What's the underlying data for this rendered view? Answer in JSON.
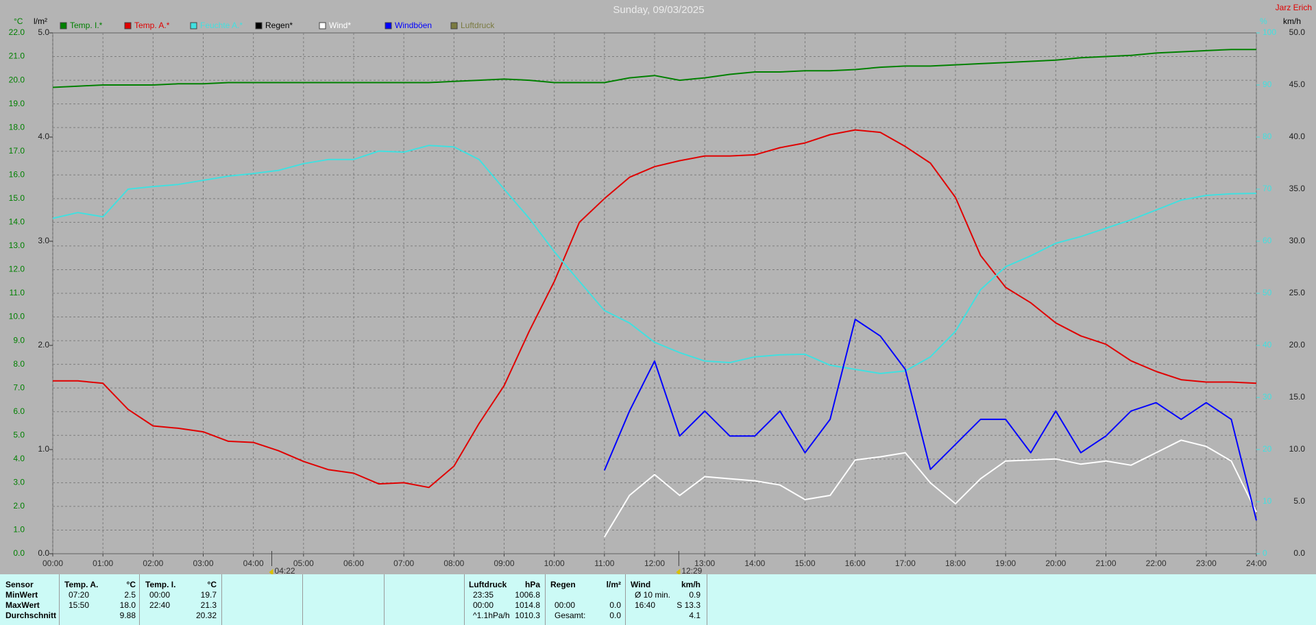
{
  "chart_data": {
    "type": "line",
    "title": "Sunday, 09/03/2025",
    "author": "Jarz Erich",
    "y_unit": "°C",
    "y4_unit": "l/m²",
    "y3_unit": "%",
    "y2_unit": "km/h",
    "grid": true,
    "x": [
      0,
      0.5,
      1,
      1.5,
      2,
      2.5,
      3,
      3.5,
      4,
      4.5,
      5,
      5.5,
      6,
      6.5,
      7,
      7.5,
      8,
      8.5,
      9,
      9.5,
      10,
      10.5,
      11,
      11.5,
      12,
      12.5,
      13,
      13.5,
      14,
      14.5,
      15,
      15.5,
      16,
      16.5,
      17,
      17.5,
      18,
      18.5,
      19,
      19.5,
      20,
      20.5,
      21,
      21.5,
      22,
      22.5,
      23,
      23.5,
      24
    ],
    "xlim": [
      0,
      24
    ],
    "xticks": [
      {
        "value": 0,
        "label": "00:00"
      },
      {
        "value": 1,
        "label": "01:00"
      },
      {
        "value": 2,
        "label": "02:00"
      },
      {
        "value": 3,
        "label": "03:00"
      },
      {
        "value": 4,
        "label": "04:00"
      },
      {
        "value": 5,
        "label": "05:00"
      },
      {
        "value": 6,
        "label": "06:00"
      },
      {
        "value": 7,
        "label": "07:00"
      },
      {
        "value": 8,
        "label": "08:00"
      },
      {
        "value": 9,
        "label": "09:00"
      },
      {
        "value": 10,
        "label": "10:00"
      },
      {
        "value": 11,
        "label": "11:00"
      },
      {
        "value": 12,
        "label": "12:00"
      },
      {
        "value": 13,
        "label": "13:00"
      },
      {
        "value": 14,
        "label": "14:00"
      },
      {
        "value": 15,
        "label": "15:00"
      },
      {
        "value": 16,
        "label": "16:00"
      },
      {
        "value": 17,
        "label": "17:00"
      },
      {
        "value": 18,
        "label": "18:00"
      },
      {
        "value": 19,
        "label": "19:00"
      },
      {
        "value": 20,
        "label": "20:00"
      },
      {
        "value": 21,
        "label": "21:00"
      },
      {
        "value": 22,
        "label": "22:00"
      },
      {
        "value": 23,
        "label": "23:00"
      },
      {
        "value": 24,
        "label": "24:00"
      }
    ],
    "markers": [
      {
        "value": 4.367,
        "label": "04:22"
      },
      {
        "value": 12.483,
        "label": "12:29"
      }
    ],
    "ylim": [
      0,
      22
    ],
    "yticks": [
      {
        "value": 0,
        "label": "0.0"
      },
      {
        "value": 1,
        "label": "1.0"
      },
      {
        "value": 2,
        "label": "2.0"
      },
      {
        "value": 3,
        "label": "3.0"
      },
      {
        "value": 4,
        "label": "4.0"
      },
      {
        "value": 5,
        "label": "5.0"
      },
      {
        "value": 6,
        "label": "6.0"
      },
      {
        "value": 7,
        "label": "7.0"
      },
      {
        "value": 8,
        "label": "8.0"
      },
      {
        "value": 9,
        "label": "9.0"
      },
      {
        "value": 10,
        "label": "10.0"
      },
      {
        "value": 11,
        "label": "11.0"
      },
      {
        "value": 12,
        "label": "12.0"
      },
      {
        "value": 13,
        "label": "13.0"
      },
      {
        "value": 14,
        "label": "14.0"
      },
      {
        "value": 15,
        "label": "15.0"
      },
      {
        "value": 16,
        "label": "16.0"
      },
      {
        "value": 17,
        "label": "17.0"
      },
      {
        "value": 18,
        "label": "18.0"
      },
      {
        "value": 19,
        "label": "19.0"
      },
      {
        "value": 20,
        "label": "20.0"
      },
      {
        "value": 21,
        "label": "21.0"
      },
      {
        "value": 22,
        "label": "22.0"
      }
    ],
    "y2lim": [
      0,
      50
    ],
    "y2ticks": [
      {
        "value": 0,
        "label": "0.0"
      },
      {
        "value": 5,
        "label": "5.0"
      },
      {
        "value": 10,
        "label": "10.0"
      },
      {
        "value": 15,
        "label": "15.0"
      },
      {
        "value": 20,
        "label": "20.0"
      },
      {
        "value": 25,
        "label": "25.0"
      },
      {
        "value": 30,
        "label": "30.0"
      },
      {
        "value": 35,
        "label": "35.0"
      },
      {
        "value": 40,
        "label": "40.0"
      },
      {
        "value": 45,
        "label": "45.0"
      },
      {
        "value": 50,
        "label": "50.0"
      }
    ],
    "y3lim": [
      0,
      100
    ],
    "y3ticks": [
      0,
      10,
      20,
      30,
      40,
      50,
      60,
      70,
      80,
      90,
      100
    ],
    "y4lim": [
      0,
      5
    ],
    "y4ticks": [
      {
        "value": 0,
        "label": "0.0"
      },
      {
        "value": 1,
        "label": "1.0"
      },
      {
        "value": 2,
        "label": "2.0"
      },
      {
        "value": 3,
        "label": "3.0"
      },
      {
        "value": 4,
        "label": "4.0"
      },
      {
        "value": 5,
        "label": "5.0"
      }
    ],
    "series": [
      {
        "name": "Temp. I.*",
        "color": "#008000",
        "axis": "y",
        "values": [
          19.7,
          19.75,
          19.8,
          19.8,
          19.8,
          19.85,
          19.85,
          19.9,
          19.9,
          19.9,
          19.9,
          19.9,
          19.9,
          19.9,
          19.9,
          19.9,
          19.95,
          20.0,
          20.05,
          20.0,
          19.9,
          19.9,
          19.9,
          20.1,
          20.2,
          20.0,
          20.1,
          20.25,
          20.35,
          20.35,
          20.4,
          20.4,
          20.45,
          20.55,
          20.6,
          20.6,
          20.65,
          20.7,
          20.75,
          20.8,
          20.85,
          20.95,
          21.0,
          21.05,
          21.15,
          21.2,
          21.25,
          21.3,
          21.3
        ]
      },
      {
        "name": "Temp. A.*",
        "color": "#e00000",
        "axis": "y",
        "values": [
          7.3,
          7.3,
          7.2,
          6.1,
          5.4,
          5.3,
          5.15,
          4.75,
          4.7,
          4.35,
          3.9,
          3.55,
          3.4,
          2.95,
          3.0,
          2.8,
          3.7,
          5.5,
          7.1,
          9.4,
          11.5,
          14.0,
          15.0,
          15.9,
          16.35,
          16.6,
          16.8,
          16.8,
          16.85,
          17.15,
          17.35,
          17.7,
          17.9,
          17.8,
          17.2,
          16.5,
          15.05,
          12.6,
          11.25,
          10.6,
          9.75,
          9.2,
          8.85,
          8.15,
          7.7,
          7.35,
          7.25,
          7.25,
          7.2
        ]
      },
      {
        "name": "Feuchte A.*",
        "color": "#40e0e0",
        "axis": "y3",
        "values": [
          64.4,
          65.5,
          64.7,
          70,
          70.5,
          70.9,
          71.7,
          72.5,
          73,
          73.6,
          74.9,
          75.7,
          75.7,
          77.3,
          77.1,
          78.4,
          78.1,
          75.7,
          70,
          64.4,
          58,
          52.3,
          46.7,
          44.3,
          40.6,
          38.6,
          37,
          36.7,
          37.8,
          38.2,
          38.3,
          36.2,
          35.4,
          34.6,
          35.1,
          37.8,
          42.7,
          50.7,
          55.1,
          57.2,
          59.6,
          60.9,
          62.5,
          64.1,
          66,
          67.9,
          68.8,
          69.1,
          69.2
        ]
      },
      {
        "name": "Regen*",
        "color": "#000000",
        "axis": "y4"
      },
      {
        "name": "Wind*",
        "color": "#ffffff",
        "axis": "y2",
        "values": [
          null,
          null,
          null,
          null,
          null,
          null,
          null,
          null,
          null,
          null,
          null,
          null,
          null,
          null,
          null,
          null,
          null,
          null,
          null,
          null,
          null,
          null,
          1.6,
          5.6,
          7.6,
          5.6,
          7.4,
          7.2,
          7.0,
          6.6,
          5.2,
          5.6,
          9.0,
          9.3,
          9.7,
          6.8,
          4.8,
          7.2,
          8.9,
          9.0,
          9.1,
          8.6,
          8.9,
          8.5,
          9.7,
          10.9,
          10.3,
          8.9,
          4.0
        ]
      },
      {
        "name": "Windböen",
        "color": "#0000ff",
        "axis": "y2",
        "values": [
          null,
          null,
          null,
          null,
          null,
          null,
          null,
          null,
          null,
          null,
          null,
          null,
          null,
          null,
          null,
          null,
          null,
          null,
          null,
          null,
          null,
          null,
          8.0,
          13.7,
          18.5,
          11.3,
          13.7,
          11.3,
          11.3,
          13.7,
          9.7,
          12.9,
          22.5,
          20.9,
          17.7,
          8.1,
          10.5,
          12.9,
          12.9,
          9.7,
          13.7,
          9.7,
          11.3,
          13.7,
          14.5,
          12.9,
          14.5,
          12.9,
          3.2
        ]
      },
      {
        "name": "Luftdruck",
        "color": "#7a7a40",
        "axis": "y"
      }
    ]
  },
  "stats": {
    "row_labels": [
      "Sensor",
      "MinWert",
      "MaxWert",
      "Durchschnitt"
    ],
    "blocks": [
      {
        "title": "Temp. A.",
        "unit": "°C",
        "rows": [
          [
            "07:20",
            "2.5"
          ],
          [
            "15:50",
            "18.0"
          ],
          [
            null,
            "9.88"
          ]
        ]
      },
      {
        "title": "Temp. I.",
        "unit": "°C",
        "rows": [
          [
            "00:00",
            "19.7"
          ],
          [
            "22:40",
            "21.3"
          ],
          [
            null,
            "20.32"
          ]
        ]
      },
      {
        "title": "Luftdruck",
        "unit": "hPa",
        "rows": [
          [
            "23:35",
            "1006.8"
          ],
          [
            "00:00",
            "1014.8"
          ],
          [
            "^1.1hPa/h",
            "1010.3"
          ]
        ]
      },
      {
        "title": "Regen",
        "unit": "l/m²",
        "rows": [
          [
            null,
            null
          ],
          [
            "00:00",
            "0.0"
          ],
          [
            "Gesamt:",
            "0.0"
          ]
        ]
      },
      {
        "title": "Wind",
        "unit": "km/h",
        "rows": [
          [
            "Ø 10 min.",
            "0.9"
          ],
          [
            "16:40",
            "S 13.3"
          ],
          [
            null,
            "4.1"
          ]
        ]
      }
    ]
  }
}
